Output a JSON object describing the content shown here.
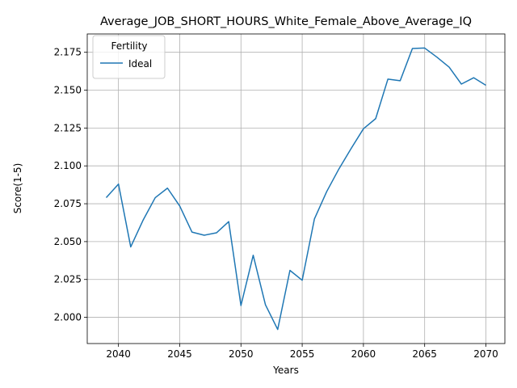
{
  "chart_data": {
    "type": "line",
    "title": "Average_JOB_SHORT_HOURS_White_Female_Above_Average_IQ",
    "xlabel": "Years",
    "ylabel": "Score(1-5)",
    "xlim": [
      2037.45,
      2071.55
    ],
    "ylim": [
      1.9827,
      2.1871
    ],
    "xticks": [
      2040,
      2045,
      2050,
      2055,
      2060,
      2065,
      2070
    ],
    "yticks": [
      2.0,
      2.025,
      2.05,
      2.075,
      2.1,
      2.125,
      2.15,
      2.175
    ],
    "xtick_labels": [
      "2040",
      "2045",
      "2050",
      "2055",
      "2060",
      "2065",
      "2070"
    ],
    "ytick_labels": [
      "2.000",
      "2.025",
      "2.050",
      "2.075",
      "2.100",
      "2.125",
      "2.150",
      "2.175"
    ],
    "grid": true,
    "legend": {
      "title": "Fertility",
      "placement": "top-left"
    },
    "x": [
      2039,
      2040,
      2041,
      2042,
      2043,
      2044,
      2045,
      2046,
      2047,
      2048,
      2049,
      2050,
      2051,
      2052,
      2053,
      2054,
      2055,
      2056,
      2057,
      2058,
      2059,
      2060,
      2061,
      2062,
      2063,
      2064,
      2065,
      2066,
      2067,
      2068,
      2069,
      2070
    ],
    "series": [
      {
        "name": "Ideal",
        "color": "#1f77b4",
        "values": [
          2.079,
          2.088,
          2.0465,
          2.064,
          2.079,
          2.0853,
          2.0735,
          2.0563,
          2.0542,
          2.0558,
          2.0632,
          2.0078,
          2.041,
          2.0083,
          1.992,
          2.031,
          2.0245,
          2.065,
          2.083,
          2.098,
          2.1115,
          2.1245,
          2.1312,
          2.1573,
          2.1562,
          2.1775,
          2.1778,
          2.1718,
          2.1652,
          2.154,
          2.1582,
          2.1532
        ]
      }
    ]
  }
}
